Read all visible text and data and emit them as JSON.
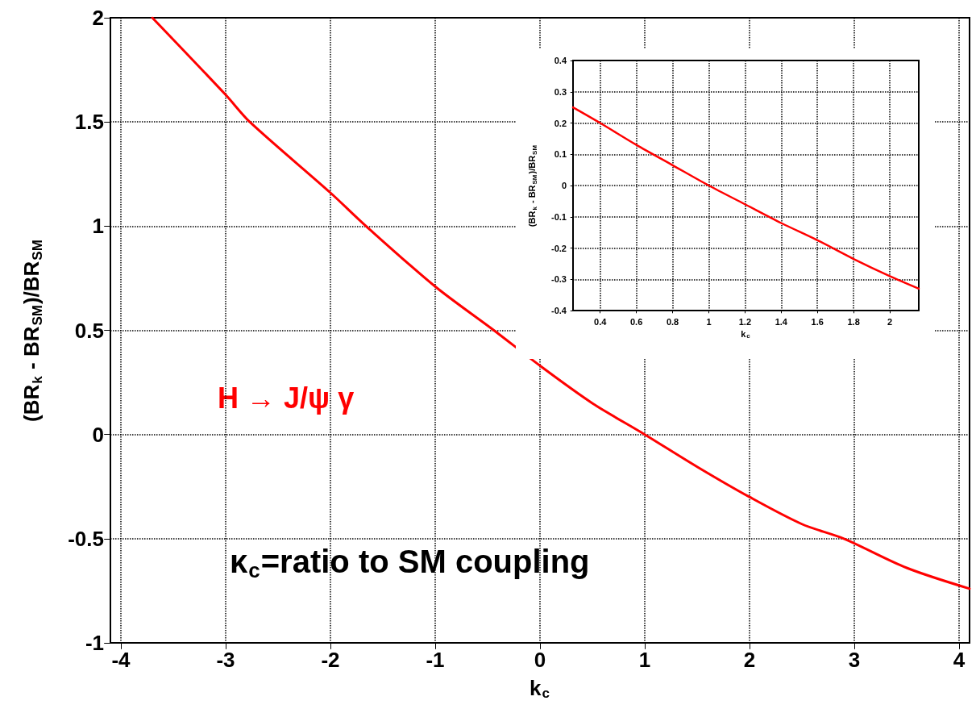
{
  "chart_data": [
    {
      "type": "line",
      "xlabel": "k$_{c}$",
      "ylabel": "(BR$_{k}$ - BR$_{SM}$)/BR$_{SM}$",
      "x": [
        -3.7,
        -3,
        -2.77,
        -2,
        -1.66,
        -1,
        -0.44,
        0,
        0.5,
        1,
        1.5,
        2,
        2.5,
        2.9,
        3.5,
        4.1
      ],
      "series": [
        {
          "color": "#ff0000",
          "values": [
            2,
            1.63,
            1.5,
            1.16,
            1,
            0.71,
            0.5,
            0.33,
            0.15,
            0,
            -0.155,
            -0.3,
            -0.43,
            -0.5,
            -0.64,
            -0.74
          ]
        }
      ],
      "xlim": [
        -4.1,
        4.1
      ],
      "xticks": [
        -4,
        -3,
        -2,
        -1,
        0,
        1,
        2,
        3,
        4
      ],
      "ylim": [
        -1,
        2
      ],
      "yticks": [
        -1,
        -0.5,
        0,
        0.5,
        1,
        1.5,
        2
      ],
      "grid": true,
      "marker": "none",
      "line_style": "solid",
      "annotations": [
        "H → J/ψ γ",
        "κ$_{c}$=ratio to SM coupling"
      ]
    },
    {
      "type": "line",
      "xlabel": "k$_{c}$",
      "ylabel": "(BR$_{k}$ - BR$_{SM}$)/BR$_{SM}$",
      "x": [
        0.25,
        0.4,
        0.6,
        0.8,
        1,
        1.2,
        1.4,
        1.6,
        1.8,
        2,
        2.16
      ],
      "series": [
        {
          "color": "#ff0000",
          "values": [
            0.25,
            0.2,
            0.13,
            0.065,
            0,
            -0.06,
            -0.12,
            -0.175,
            -0.235,
            -0.29,
            -0.33
          ]
        }
      ],
      "xlim": [
        0.25,
        2.16
      ],
      "xticks": [
        0.4,
        0.6,
        0.8,
        1,
        1.2,
        1.4,
        1.6,
        1.8,
        2
      ],
      "ylim": [
        -0.4,
        0.4
      ],
      "yticks": [
        -0.4,
        -0.3,
        -0.2,
        -0.1,
        0,
        0.1,
        0.2,
        0.3,
        0.4
      ],
      "grid": true,
      "marker": "none",
      "line_style": "solid"
    }
  ]
}
